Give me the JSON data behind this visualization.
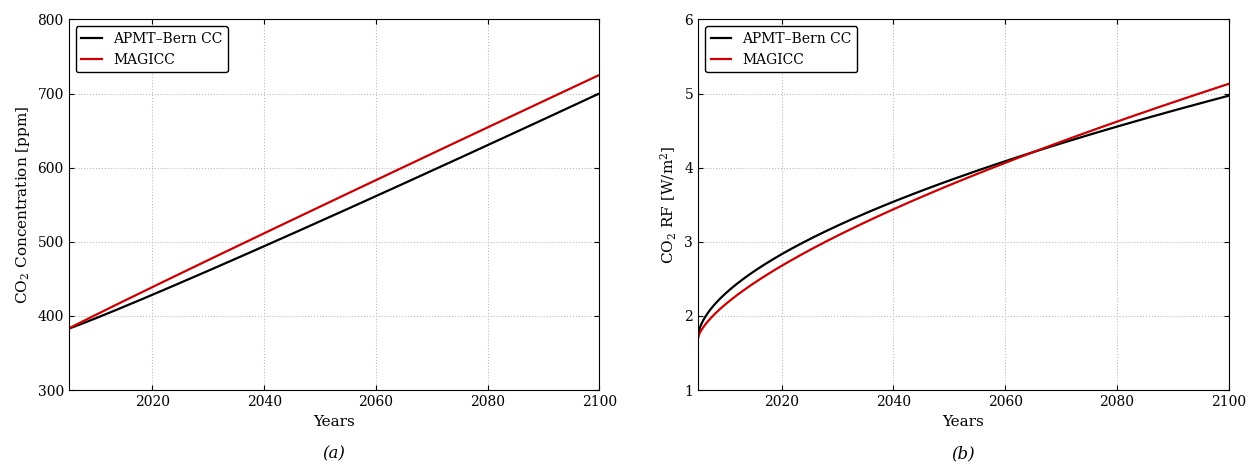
{
  "years_start": 2005,
  "years_end": 2100,
  "panel_a": {
    "ylabel": "CO$_2$ Concentration [ppm]",
    "xlabel": "Years",
    "label_a": "(a)",
    "ylim": [
      300,
      800
    ],
    "yticks": [
      300,
      400,
      500,
      600,
      700,
      800
    ],
    "xlim": [
      2005,
      2100
    ],
    "xticks": [
      2020,
      2040,
      2060,
      2080,
      2100
    ]
  },
  "panel_b": {
    "ylabel": "CO$_2$ RF [W/m$^2$]",
    "xlabel": "Years",
    "label_b": "(b)",
    "ylim": [
      1,
      6
    ],
    "yticks": [
      1,
      2,
      3,
      4,
      5,
      6
    ],
    "xlim": [
      2005,
      2100
    ],
    "xticks": [
      2020,
      2040,
      2060,
      2080,
      2100
    ]
  },
  "legend_apmt": "APMT–Bern CC",
  "legend_magicc": "MAGICC",
  "color_apmt": "#000000",
  "color_magicc": "#cc0000",
  "line_width": 1.6,
  "bg_color": "#ffffff",
  "grid_color": "#bbbbbb",
  "font_size_label": 11,
  "font_size_tick": 10,
  "font_size_legend": 10,
  "font_size_annotation": 12
}
